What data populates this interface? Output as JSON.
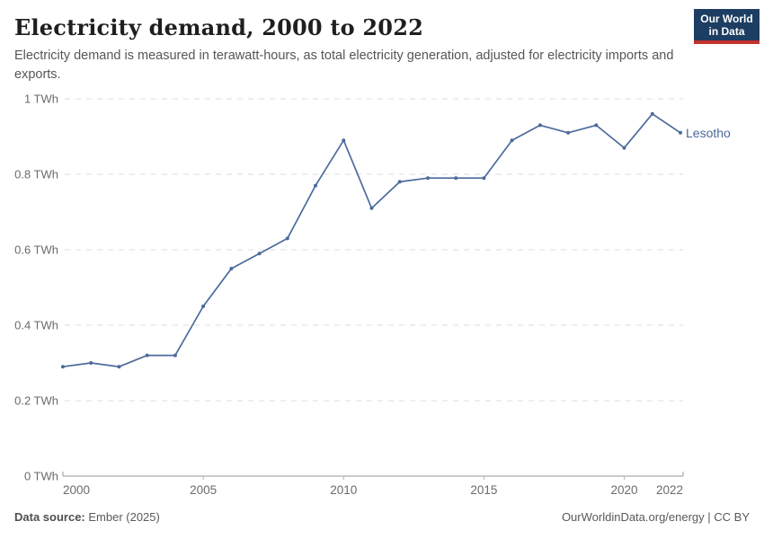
{
  "header": {
    "title": "Electricity demand, 2000 to 2022",
    "subtitle": "Electricity demand is measured in terawatt-hours, as total electricity generation, adjusted for electricity imports and exports.",
    "logo_line1": "Our World",
    "logo_line2": "in Data",
    "logo_colors": {
      "background": "#1d3d63",
      "underline": "#c3312f"
    }
  },
  "chart_data": {
    "type": "line",
    "title": "Electricity demand, 2000 to 2022",
    "unit": "TWh",
    "x": [
      2000,
      2001,
      2002,
      2003,
      2004,
      2005,
      2006,
      2007,
      2008,
      2009,
      2010,
      2011,
      2012,
      2013,
      2014,
      2015,
      2016,
      2017,
      2018,
      2019,
      2020,
      2021,
      2022
    ],
    "series": [
      {
        "name": "Lesotho",
        "color": "#4c6a9c",
        "values": [
          0.29,
          0.3,
          0.29,
          0.32,
          0.32,
          0.45,
          0.55,
          0.59,
          0.63,
          0.77,
          0.89,
          0.71,
          0.78,
          0.79,
          0.79,
          0.79,
          0.89,
          0.93,
          0.91,
          0.93,
          0.87,
          0.96,
          0.91
        ]
      }
    ],
    "xlim": [
      2000,
      2022
    ],
    "ylim": [
      0,
      1
    ],
    "y_ticks": [
      {
        "v": 0,
        "label": "0 TWh"
      },
      {
        "v": 0.2,
        "label": "0.2 TWh"
      },
      {
        "v": 0.4,
        "label": "0.4 TWh"
      },
      {
        "v": 0.6,
        "label": "0.6 TWh"
      },
      {
        "v": 0.8,
        "label": "0.8 TWh"
      },
      {
        "v": 1,
        "label": "1 TWh"
      }
    ],
    "x_ticks": [
      {
        "v": 2000,
        "label": "2000"
      },
      {
        "v": 2005,
        "label": "2005"
      },
      {
        "v": 2010,
        "label": "2010"
      },
      {
        "v": 2015,
        "label": "2015"
      },
      {
        "v": 2020,
        "label": "2020"
      },
      {
        "v": 2022,
        "label": "2022"
      }
    ],
    "grid": "horizontal-dashed",
    "legend": "end-of-line-label"
  },
  "footer": {
    "source_label": "Data source:",
    "source_value": " Ember (2025)",
    "right_text": "OurWorldinData.org/energy | CC BY"
  }
}
